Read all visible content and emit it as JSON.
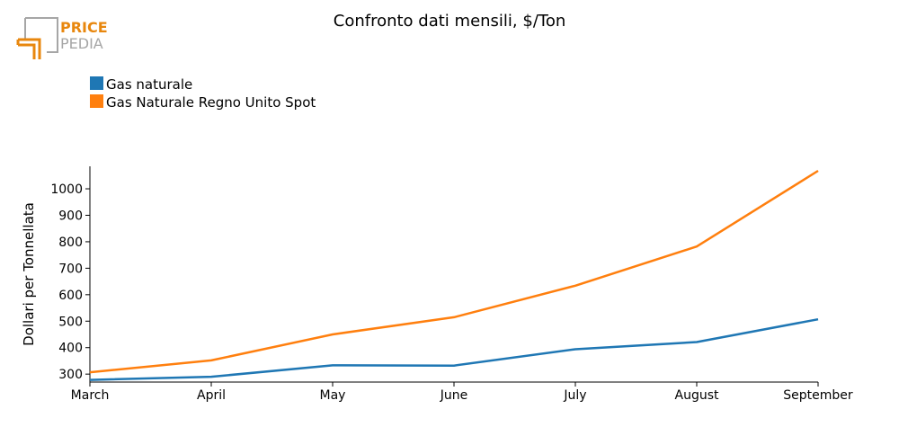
{
  "logo": {
    "line1": "PRICE",
    "line2": "PEDIA",
    "accent": "#e8870e",
    "gray": "#a6a6a6"
  },
  "chart_data": {
    "type": "line",
    "title": "Confronto dati mensili, $/Ton",
    "xlabel": "",
    "ylabel": "Dollari per Tonnellata",
    "categories": [
      "March",
      "April",
      "May",
      "June",
      "July",
      "August",
      "September"
    ],
    "ylim": [
      270,
      1085
    ],
    "yticks": [
      300,
      400,
      500,
      600,
      700,
      800,
      900,
      1000
    ],
    "grid": false,
    "legend_position": "top-left",
    "series": [
      {
        "name": "Gas naturale",
        "color": "#1f77b4",
        "values": [
          278,
          290,
          333,
          332,
          394,
          421,
          507
        ]
      },
      {
        "name": "Gas Naturale Regno Unito Spot",
        "color": "#ff7f0e",
        "values": [
          307,
          352,
          450,
          515,
          634,
          782,
          1068
        ]
      }
    ]
  }
}
